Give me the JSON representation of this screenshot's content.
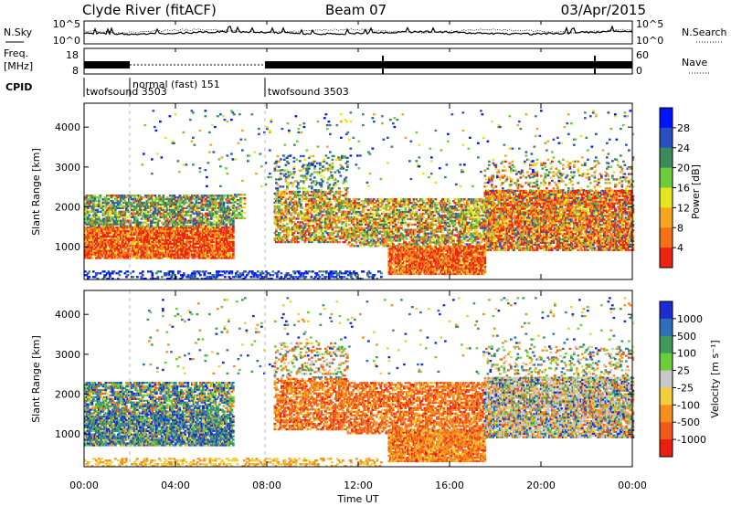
{
  "header": {
    "station": "Clyde River (fitACF)",
    "beam": "Beam 07",
    "date": "03/Apr/2015"
  },
  "top_panels": {
    "nsky_label": "N.Sky",
    "nsearch_label": "N.Search",
    "freq_label_line1": "Freq.",
    "freq_label_line2": "[MHz]",
    "nave_label": "Nave",
    "cpid_label": "CPID",
    "noise_ticks": [
      "10^5",
      "10^0"
    ],
    "freq_ticks": [
      "18",
      "8"
    ],
    "nave_ticks": [
      "60",
      "0"
    ],
    "cpid_segments": [
      {
        "name": "twofsound 3503",
        "start_hour": 0.0
      },
      {
        "name": "normal (fast) 151",
        "start_hour": 2.0
      },
      {
        "name": "twofsound 3503",
        "start_hour": 8.0
      }
    ]
  },
  "chart_data": [
    {
      "type": "heatmap",
      "name": "power",
      "x": [
        0,
        4,
        8,
        12,
        16,
        20,
        24
      ],
      "tick_labels": [
        "00:00",
        "04:00",
        "08:00",
        "12:00",
        "16:00",
        "20:00",
        "00:00"
      ],
      "xlabel": "Time UT",
      "ylabel": "Slant Range [km]",
      "yticks": [
        1000,
        2000,
        3000,
        4000
      ],
      "ylim": [
        180,
        4600
      ],
      "xlim": [
        0,
        24
      ],
      "colorbar": {
        "label": "Power [dB]",
        "ticks": [
          "4",
          "8",
          "12",
          "16",
          "20",
          "24",
          "28"
        ],
        "colors": [
          "#0015ff",
          "#2a4fc0",
          "#3d8a5a",
          "#6ccd3a",
          "#e6e61c",
          "#f7a51f",
          "#f47116",
          "#ec2512"
        ]
      }
    },
    {
      "type": "heatmap",
      "name": "velocity",
      "x": [
        0,
        4,
        8,
        12,
        16,
        20,
        24
      ],
      "tick_labels": [
        "00:00",
        "04:00",
        "08:00",
        "12:00",
        "16:00",
        "20:00",
        "00:00"
      ],
      "xlabel": "Time UT",
      "ylabel": "Slant Range [km]",
      "yticks": [
        1000,
        2000,
        3000,
        4000
      ],
      "ylim": [
        180,
        4600
      ],
      "xlim": [
        0,
        24
      ],
      "colorbar": {
        "label": "Velocity [m s⁻¹]",
        "ticks": [
          "1000",
          "500",
          "100",
          "25",
          "-25",
          "-100",
          "-500",
          "-1000"
        ],
        "colors": [
          "#1d2bd2",
          "#2f6fb8",
          "#3d9a5a",
          "#6ccd3a",
          "#c8c8c8",
          "#f1ce3a",
          "#f58f1a",
          "#f2581a",
          "#ea1f12"
        ]
      }
    }
  ]
}
